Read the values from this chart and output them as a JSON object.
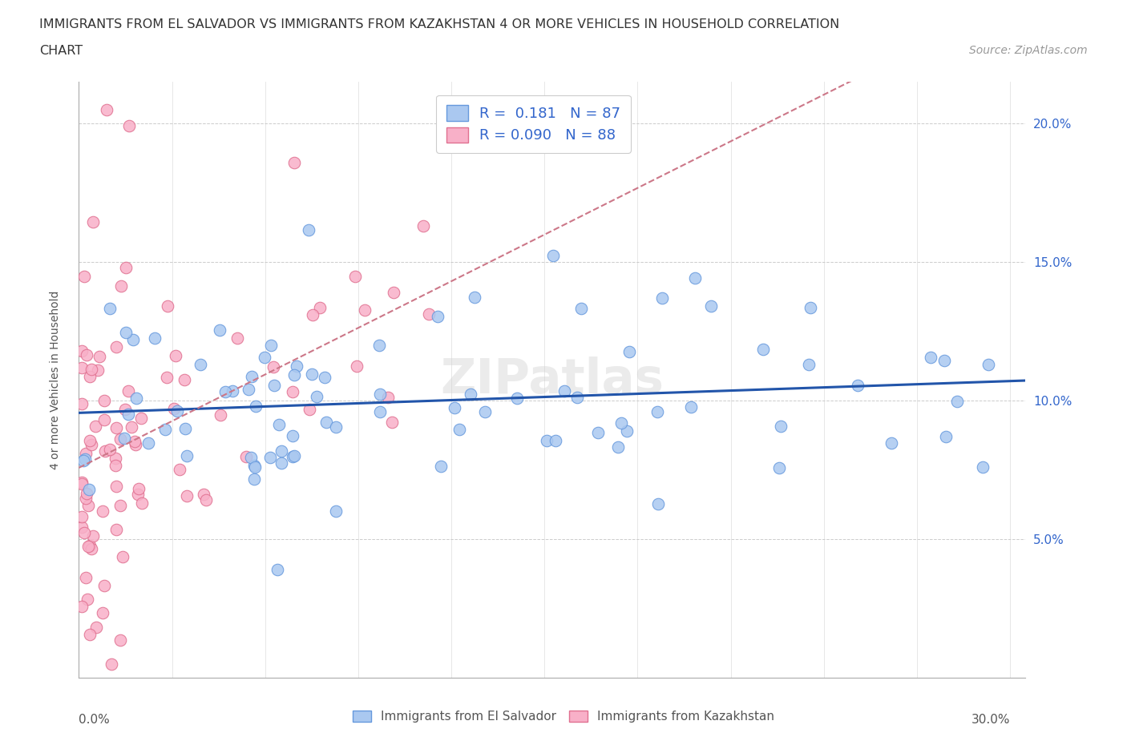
{
  "title_line1": "IMMIGRANTS FROM EL SALVADOR VS IMMIGRANTS FROM KAZAKHSTAN 4 OR MORE VEHICLES IN HOUSEHOLD CORRELATION",
  "title_line2": "CHART",
  "source": "Source: ZipAtlas.com",
  "ylabel": "4 or more Vehicles in Household",
  "xlim": [
    0.0,
    0.305
  ],
  "ylim": [
    0.0,
    0.215
  ],
  "ytick_vals": [
    0.05,
    0.1,
    0.15,
    0.2
  ],
  "ytick_labels": [
    "5.0%",
    "10.0%",
    "15.0%",
    "20.0%"
  ],
  "el_salvador_color": "#aac8f0",
  "el_salvador_edge": "#6699dd",
  "kazakhstan_color": "#f8b0c8",
  "kazakhstan_edge": "#e07090",
  "trend_es_color": "#2255aa",
  "trend_kz_color": "#cc7788",
  "R_el_salvador": 0.181,
  "N_el_salvador": 87,
  "R_kazakhstan": 0.09,
  "N_kazakhstan": 88,
  "legend_text_color": "#3366cc",
  "watermark": "ZIPatlas"
}
